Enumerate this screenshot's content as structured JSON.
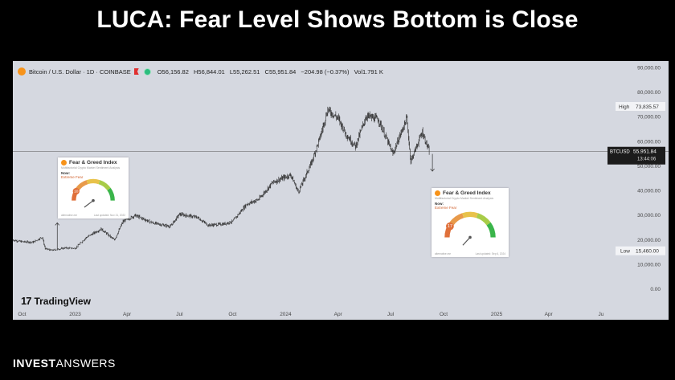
{
  "slide": {
    "title": "LUCA: Fear Level Shows Bottom is Close",
    "footer_bold": "INVEST",
    "footer_light": "ANSWERS"
  },
  "legend": {
    "symbol": "Bitcoin / U.S. Dollar · 1D · COINBASE",
    "open": "O56,156.82",
    "high": "H56,844.01",
    "low": "L55,262.51",
    "close": "C55,951.84",
    "change": "−204.98 (−0.37%)",
    "volume": "Vol1.791 K"
  },
  "brand": {
    "name": "TradingView"
  },
  "markers": {
    "high_label": "High",
    "high_value": "73,835.57",
    "low_label": "Low",
    "low_value": "15,460.00",
    "price_tag_symbol": "BTCUSD",
    "price_tag_value": "55,951.84",
    "price_tag_timer": "13:44:06"
  },
  "fng_cards": [
    {
      "title": "Fear & Greed Index",
      "now": "Now:",
      "classification": "Extreme Fear",
      "value": 10,
      "foot_left": "alternative.me",
      "foot_right": "Last updated: Nov 21, 2022"
    },
    {
      "title": "Fear & Greed Index",
      "now": "Now:",
      "classification": "Extreme Fear",
      "value": 17,
      "foot_left": "alternative.me",
      "foot_right": "Last updated: Sep 6, 2024"
    }
  ],
  "colors": {
    "background": "#000000",
    "panel": "#d5d8e0",
    "candles": "#2a2a2a",
    "accent_orange": "#f7931a",
    "gauge_fear": "#e0703a",
    "gauge_greed": "#3ab54a"
  },
  "chart_data": {
    "type": "candlestick",
    "title": "Bitcoin / U.S. Dollar · 1D · COINBASE",
    "xlabel": "",
    "ylabel": "",
    "ylim": [
      0,
      90000
    ],
    "yticks": [
      90000,
      80000,
      70000,
      60000,
      50000,
      40000,
      30000,
      20000,
      10000,
      0
    ],
    "ytick_labels": [
      "90,000.00",
      "80,000.00",
      "70,000.00",
      "60,000.00",
      "50,000.00",
      "40,000.00",
      "30,000.00",
      "20,000.00",
      "10,000.00",
      "0.00"
    ],
    "xlim": [
      "2022-09-15",
      "2025-07-15"
    ],
    "xticks": [
      {
        "date": "2022-10-01",
        "label": "Oct"
      },
      {
        "date": "2023-01-01",
        "label": "2023"
      },
      {
        "date": "2023-04-01",
        "label": "Apr"
      },
      {
        "date": "2023-07-01",
        "label": "Jul"
      },
      {
        "date": "2023-10-01",
        "label": "Oct"
      },
      {
        "date": "2024-01-01",
        "label": "2024"
      },
      {
        "date": "2024-04-01",
        "label": "Apr"
      },
      {
        "date": "2024-07-01",
        "label": "Jul"
      },
      {
        "date": "2024-10-01",
        "label": "Oct"
      },
      {
        "date": "2025-01-01",
        "label": "2025"
      },
      {
        "date": "2025-04-01",
        "label": "Apr"
      },
      {
        "date": "2025-07-01",
        "label": "Ju"
      }
    ],
    "series": [
      {
        "values": [
          [
            "2022-09-15",
            20000
          ],
          [
            "2022-10-01",
            19300
          ],
          [
            "2022-10-20",
            19100
          ],
          [
            "2022-11-05",
            21200
          ],
          [
            "2022-11-10",
            16500
          ],
          [
            "2022-11-21",
            15800
          ],
          [
            "2022-12-15",
            16800
          ],
          [
            "2023-01-01",
            16600
          ],
          [
            "2023-01-20",
            21000
          ],
          [
            "2023-02-15",
            24500
          ],
          [
            "2023-03-10",
            20000
          ],
          [
            "2023-03-25",
            27500
          ],
          [
            "2023-04-15",
            30000
          ],
          [
            "2023-05-15",
            27000
          ],
          [
            "2023-06-15",
            25500
          ],
          [
            "2023-07-01",
            30500
          ],
          [
            "2023-08-01",
            29200
          ],
          [
            "2023-08-20",
            26000
          ],
          [
            "2023-09-15",
            26500
          ],
          [
            "2023-10-01",
            27500
          ],
          [
            "2023-10-25",
            34500
          ],
          [
            "2023-11-15",
            36500
          ],
          [
            "2023-12-10",
            43500
          ],
          [
            "2024-01-10",
            46500
          ],
          [
            "2024-01-23",
            39500
          ],
          [
            "2024-02-15",
            51500
          ],
          [
            "2024-03-01",
            62000
          ],
          [
            "2024-03-14",
            73000
          ],
          [
            "2024-04-01",
            69500
          ],
          [
            "2024-04-15",
            63000
          ],
          [
            "2024-05-01",
            58000
          ],
          [
            "2024-05-20",
            70500
          ],
          [
            "2024-06-10",
            69000
          ],
          [
            "2024-07-05",
            55000
          ],
          [
            "2024-07-29",
            69500
          ],
          [
            "2024-08-05",
            52000
          ],
          [
            "2024-08-25",
            64000
          ],
          [
            "2024-09-06",
            55951.84
          ]
        ]
      }
    ],
    "annotations": [
      {
        "type": "horizontal_line",
        "y": 55951.84
      },
      {
        "type": "arrow",
        "date": "2022-12-01",
        "from": 15800,
        "to": 27000
      },
      {
        "type": "arrow",
        "date": "2024-09-06",
        "from": 55000,
        "to": 48000
      }
    ],
    "grid": false,
    "legend": "none"
  }
}
